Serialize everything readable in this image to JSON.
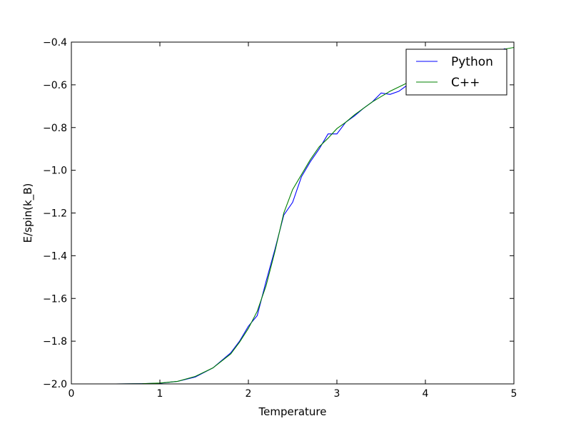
{
  "chart_data": {
    "type": "line",
    "xlabel": "Temperature",
    "ylabel": "E/spin(k_B)",
    "xlim": [
      0,
      5
    ],
    "ylim": [
      -2.0,
      -0.4
    ],
    "x_ticks": [
      0,
      1,
      2,
      3,
      4,
      5
    ],
    "x_tick_labels": [
      "0",
      "1",
      "2",
      "3",
      "4",
      "5"
    ],
    "y_ticks": [
      -2.0,
      -1.8,
      -1.6,
      -1.4,
      -1.2,
      -1.0,
      -0.8,
      -0.6,
      -0.4
    ],
    "y_tick_labels": [
      "−2.0",
      "−1.8",
      "−1.6",
      "−1.4",
      "−1.2",
      "−1.0",
      "−0.8",
      "−0.6",
      "−0.4"
    ],
    "grid": false,
    "legend_position": "top-right",
    "series": [
      {
        "name": "Python",
        "color": "#0000ff",
        "x": [
          0.1,
          0.5,
          0.8,
          1.0,
          1.2,
          1.4,
          1.6,
          1.8,
          1.9,
          2.0,
          2.1,
          2.2,
          2.3,
          2.4,
          2.5,
          2.6,
          2.7,
          2.8,
          2.9,
          3.0,
          3.1,
          3.2,
          3.3,
          3.4,
          3.5,
          3.6,
          3.7,
          3.8,
          3.9,
          4.0,
          4.2,
          4.4,
          4.6,
          4.8,
          4.9
        ],
        "y": [
          -2.0,
          -2.0,
          -1.999,
          -1.997,
          -1.988,
          -1.968,
          -1.925,
          -1.855,
          -1.8,
          -1.73,
          -1.68,
          -1.52,
          -1.37,
          -1.21,
          -1.15,
          -1.03,
          -0.96,
          -0.9,
          -0.83,
          -0.83,
          -0.775,
          -0.745,
          -0.71,
          -0.68,
          -0.638,
          -0.645,
          -0.63,
          -0.6,
          -0.585,
          -0.57,
          -0.54,
          -0.51,
          -0.48,
          -0.45,
          -0.43
        ]
      },
      {
        "name": "C++",
        "color": "#008000",
        "x": [
          0.1,
          0.5,
          0.8,
          1.0,
          1.2,
          1.4,
          1.6,
          1.8,
          1.9,
          2.0,
          2.1,
          2.2,
          2.3,
          2.4,
          2.5,
          2.6,
          2.7,
          2.8,
          2.9,
          3.0,
          3.1,
          3.2,
          3.3,
          3.4,
          3.5,
          3.6,
          3.7,
          3.8,
          3.9,
          4.0,
          4.2,
          4.4,
          4.6,
          4.8,
          5.0
        ],
        "y": [
          -2.0,
          -2.0,
          -1.999,
          -1.996,
          -1.988,
          -1.965,
          -1.925,
          -1.86,
          -1.805,
          -1.74,
          -1.66,
          -1.54,
          -1.38,
          -1.2,
          -1.09,
          -1.02,
          -0.95,
          -0.89,
          -0.85,
          -0.805,
          -0.775,
          -0.74,
          -0.71,
          -0.68,
          -0.655,
          -0.63,
          -0.61,
          -0.59,
          -0.57,
          -0.55,
          -0.52,
          -0.49,
          -0.465,
          -0.44,
          -0.425
        ]
      }
    ]
  }
}
